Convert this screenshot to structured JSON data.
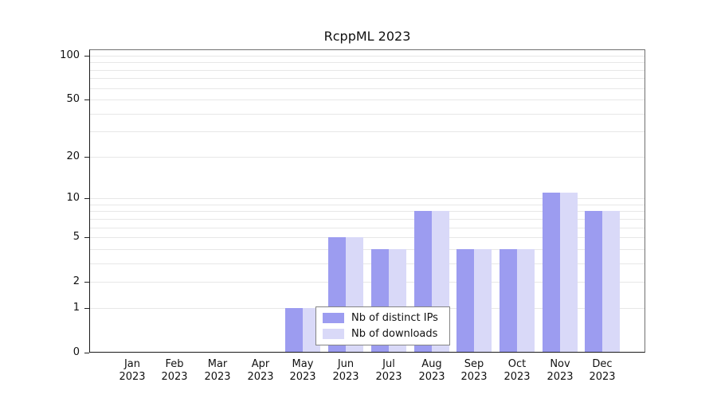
{
  "chart_data": {
    "type": "bar",
    "title": "RcppML 2023",
    "categories": [
      "Jan 2023",
      "Feb 2023",
      "Mar 2023",
      "Apr 2023",
      "May 2023",
      "Jun 2023",
      "Jul 2023",
      "Aug 2023",
      "Sep 2023",
      "Oct 2023",
      "Nov 2023",
      "Dec 2023"
    ],
    "series": [
      {
        "name": "Nb of distinct IPs",
        "color": "#9c9cf0",
        "values": [
          0,
          0,
          0,
          0,
          1,
          5,
          4,
          8,
          4,
          4,
          11,
          8
        ]
      },
      {
        "name": "Nb of downloads",
        "color": "#d9d9f8",
        "values": [
          0,
          0,
          0,
          0,
          1,
          5,
          4,
          8,
          4,
          4,
          11,
          8
        ]
      }
    ],
    "y_ticks": [
      0,
      1,
      2,
      5,
      10,
      20,
      50,
      100
    ],
    "gridline_values": [
      1,
      2,
      3,
      4,
      5,
      6,
      7,
      8,
      9,
      10,
      20,
      30,
      40,
      50,
      60,
      70,
      80,
      90,
      100
    ],
    "y_scale": "log1p",
    "ylim": [
      0,
      100
    ],
    "xlabel": "",
    "ylabel": "",
    "grid": true,
    "legend_position": "bottom-center-inside"
  }
}
